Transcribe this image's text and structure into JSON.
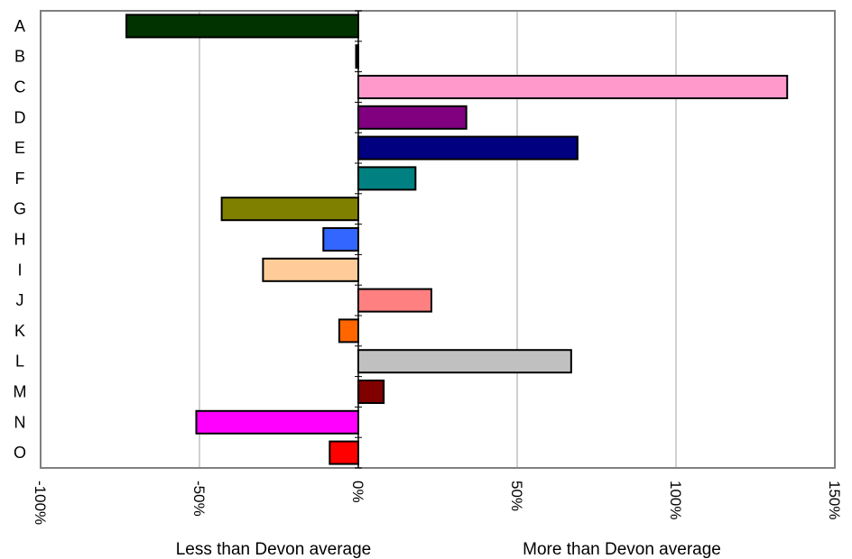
{
  "chart_data": {
    "type": "bar",
    "orientation": "horizontal",
    "categories": [
      "A",
      "B",
      "C",
      "D",
      "E",
      "F",
      "G",
      "H",
      "I",
      "J",
      "K",
      "L",
      "M",
      "N",
      "O"
    ],
    "values": [
      -73,
      -0.5,
      135,
      34,
      69,
      18,
      -43,
      -11,
      -30,
      23,
      -6,
      67,
      8,
      -51,
      -9
    ],
    "colors": [
      "#003300",
      "#000000",
      "#FF99CC",
      "#800080",
      "#000080",
      "#008080",
      "#808000",
      "#3366FF",
      "#FFCC99",
      "#FF8080",
      "#FF6600",
      "#C0C0C0",
      "#800000",
      "#FF00FF",
      "#FF0000"
    ],
    "xlim": [
      -100,
      150
    ],
    "xticks": [
      -100,
      -50,
      0,
      50,
      100,
      150
    ],
    "xtick_labels": [
      "-100%",
      "-50%",
      "0%",
      "50%",
      "100%",
      "150%"
    ],
    "grid": true,
    "legend": "none"
  },
  "captions": {
    "left": "Less than Devon average",
    "right": "More than Devon average"
  }
}
